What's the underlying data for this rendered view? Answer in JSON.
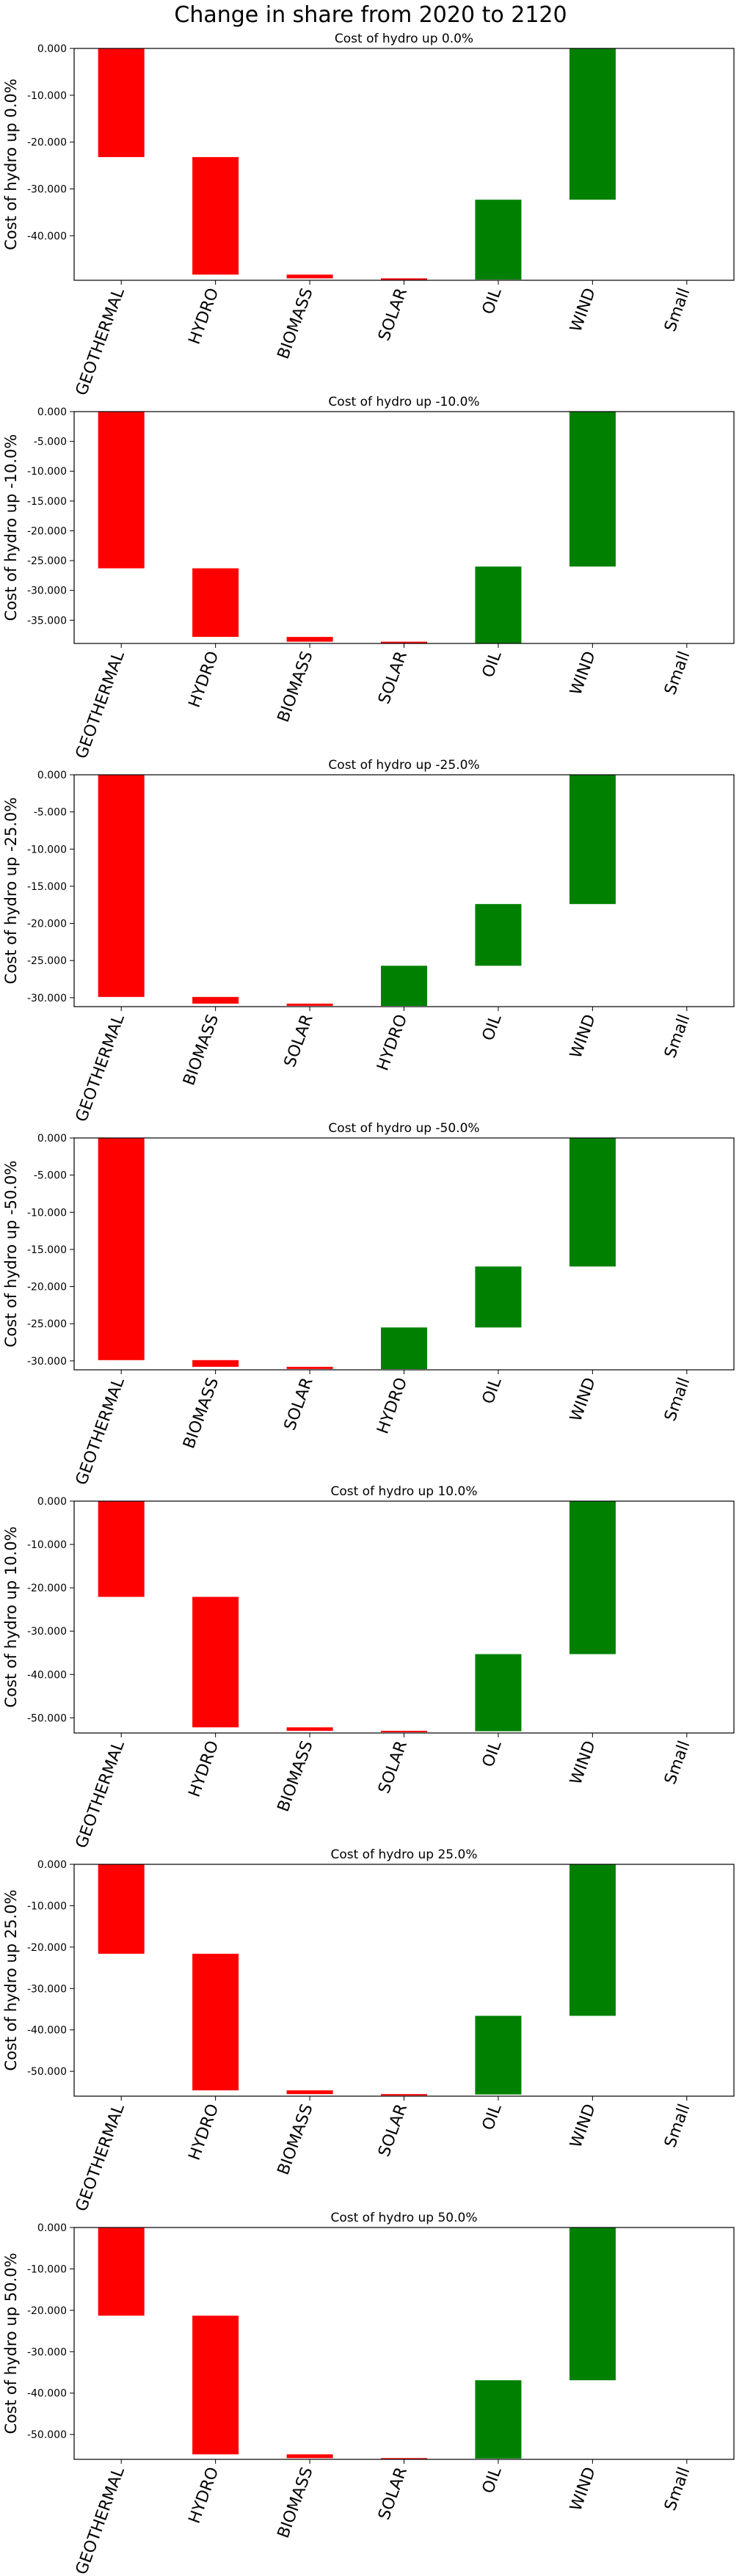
{
  "figure": {
    "suptitle": "Change in share from 2020 to 2120"
  },
  "colors": {
    "negative": "#ff0000",
    "positive": "#008000",
    "axis": "#000000",
    "background": "#ffffff"
  },
  "chart_data": [
    {
      "type": "bar",
      "subtype": "waterfall",
      "title": "Cost of hydro up 0.0%",
      "ylabel": "Cost of hydro up 0.0%",
      "categories": [
        "GEOTHERMAL",
        "HYDRO",
        "BIOMASS",
        "SOLAR",
        "OIL",
        "WIND",
        "Small"
      ],
      "bars": [
        {
          "category": "GEOTHERMAL",
          "top": 0,
          "bottom": -23200,
          "sign": "negative"
        },
        {
          "category": "HYDRO",
          "top": -23200,
          "bottom": -48300,
          "sign": "negative"
        },
        {
          "category": "BIOMASS",
          "top": -48300,
          "bottom": -49100,
          "sign": "negative"
        },
        {
          "category": "SOLAR",
          "top": -49100,
          "bottom": -49350,
          "sign": "negative"
        },
        {
          "category": "OIL",
          "top": -49350,
          "bottom": -32300,
          "sign": "positive"
        },
        {
          "category": "WIND",
          "top": -32300,
          "bottom": 0,
          "sign": "positive"
        },
        {
          "category": "Small",
          "top": 0,
          "bottom": 0,
          "sign": "positive"
        }
      ],
      "yticks": [
        "0.000",
        "-10.000",
        "-20.000",
        "-30.000",
        "-40.000"
      ],
      "ytick_values": [
        0,
        -10000,
        -20000,
        -30000,
        -40000
      ],
      "ylim": [
        -49500,
        0
      ]
    },
    {
      "type": "bar",
      "subtype": "waterfall",
      "title": "Cost of hydro up -10.0%",
      "ylabel": "Cost of hydro up -10.0%",
      "categories": [
        "GEOTHERMAL",
        "HYDRO",
        "BIOMASS",
        "SOLAR",
        "OIL",
        "WIND",
        "Small"
      ],
      "bars": [
        {
          "category": "GEOTHERMAL",
          "top": 0,
          "bottom": -26300,
          "sign": "negative"
        },
        {
          "category": "HYDRO",
          "top": -26300,
          "bottom": -37800,
          "sign": "negative"
        },
        {
          "category": "BIOMASS",
          "top": -37800,
          "bottom": -38600,
          "sign": "negative"
        },
        {
          "category": "SOLAR",
          "top": -38600,
          "bottom": -38900,
          "sign": "negative"
        },
        {
          "category": "OIL",
          "top": -38900,
          "bottom": -26000,
          "sign": "positive"
        },
        {
          "category": "WIND",
          "top": -26000,
          "bottom": 0,
          "sign": "positive"
        },
        {
          "category": "Small",
          "top": 0,
          "bottom": 0,
          "sign": "positive"
        }
      ],
      "yticks": [
        "0.000",
        "-5.000",
        "-10.000",
        "-15.000",
        "-20.000",
        "-25.000",
        "-30.000",
        "-35.000"
      ],
      "ytick_values": [
        0,
        -5000,
        -10000,
        -15000,
        -20000,
        -25000,
        -30000,
        -35000
      ],
      "ylim": [
        -38900,
        0
      ]
    },
    {
      "type": "bar",
      "subtype": "waterfall",
      "title": "Cost of hydro up -25.0%",
      "ylabel": "Cost of hydro up -25.0%",
      "categories": [
        "GEOTHERMAL",
        "BIOMASS",
        "SOLAR",
        "HYDRO",
        "OIL",
        "WIND",
        "Small"
      ],
      "bars": [
        {
          "category": "GEOTHERMAL",
          "top": 0,
          "bottom": -29900,
          "sign": "negative"
        },
        {
          "category": "BIOMASS",
          "top": -29900,
          "bottom": -30800,
          "sign": "negative"
        },
        {
          "category": "SOLAR",
          "top": -30800,
          "bottom": -31100,
          "sign": "negative"
        },
        {
          "category": "HYDRO",
          "top": -31100,
          "bottom": -25700,
          "sign": "positive"
        },
        {
          "category": "OIL",
          "top": -25700,
          "bottom": -17400,
          "sign": "positive"
        },
        {
          "category": "WIND",
          "top": -17400,
          "bottom": 0,
          "sign": "positive"
        },
        {
          "category": "Small",
          "top": 0,
          "bottom": 0,
          "sign": "positive"
        }
      ],
      "yticks": [
        "0.000",
        "-5.000",
        "-10.000",
        "-15.000",
        "-20.000",
        "-25.000",
        "-30.000"
      ],
      "ytick_values": [
        0,
        -5000,
        -10000,
        -15000,
        -20000,
        -25000,
        -30000
      ],
      "ylim": [
        -31200,
        0
      ]
    },
    {
      "type": "bar",
      "subtype": "waterfall",
      "title": "Cost of hydro up -50.0%",
      "ylabel": "Cost of hydro up -50.0%",
      "categories": [
        "GEOTHERMAL",
        "BIOMASS",
        "SOLAR",
        "HYDRO",
        "OIL",
        "WIND",
        "Small"
      ],
      "bars": [
        {
          "category": "GEOTHERMAL",
          "top": 0,
          "bottom": -29900,
          "sign": "negative"
        },
        {
          "category": "BIOMASS",
          "top": -29900,
          "bottom": -30800,
          "sign": "negative"
        },
        {
          "category": "SOLAR",
          "top": -30800,
          "bottom": -31100,
          "sign": "negative"
        },
        {
          "category": "HYDRO",
          "top": -31100,
          "bottom": -25500,
          "sign": "positive"
        },
        {
          "category": "OIL",
          "top": -25500,
          "bottom": -17300,
          "sign": "positive"
        },
        {
          "category": "WIND",
          "top": -17300,
          "bottom": 0,
          "sign": "positive"
        },
        {
          "category": "Small",
          "top": 0,
          "bottom": 0,
          "sign": "positive"
        }
      ],
      "yticks": [
        "0.000",
        "-5.000",
        "-10.000",
        "-15.000",
        "-20.000",
        "-25.000",
        "-30.000"
      ],
      "ytick_values": [
        0,
        -5000,
        -10000,
        -15000,
        -20000,
        -25000,
        -30000
      ],
      "ylim": [
        -31200,
        0
      ]
    },
    {
      "type": "bar",
      "subtype": "waterfall",
      "title": "Cost of hydro up 10.0%",
      "ylabel": "Cost of hydro up 10.0%",
      "categories": [
        "GEOTHERMAL",
        "HYDRO",
        "BIOMASS",
        "SOLAR",
        "OIL",
        "WIND",
        "Small"
      ],
      "bars": [
        {
          "category": "GEOTHERMAL",
          "top": 0,
          "bottom": -22100,
          "sign": "negative"
        },
        {
          "category": "HYDRO",
          "top": -22100,
          "bottom": -52200,
          "sign": "negative"
        },
        {
          "category": "BIOMASS",
          "top": -52200,
          "bottom": -53000,
          "sign": "negative"
        },
        {
          "category": "SOLAR",
          "top": -53000,
          "bottom": -53100,
          "sign": "negative"
        },
        {
          "category": "OIL",
          "top": -53100,
          "bottom": -35300,
          "sign": "positive"
        },
        {
          "category": "WIND",
          "top": -35300,
          "bottom": 0,
          "sign": "positive"
        },
        {
          "category": "Small",
          "top": 0,
          "bottom": 0,
          "sign": "positive"
        }
      ],
      "yticks": [
        "0.000",
        "-10.000",
        "-20.000",
        "-30.000",
        "-40.000",
        "-50.000"
      ],
      "ytick_values": [
        0,
        -10000,
        -20000,
        -30000,
        -40000,
        -50000
      ],
      "ylim": [
        -53500,
        0
      ]
    },
    {
      "type": "bar",
      "subtype": "waterfall",
      "title": "Cost of hydro up 25.0%",
      "ylabel": "Cost of hydro up 25.0%",
      "categories": [
        "GEOTHERMAL",
        "HYDRO",
        "BIOMASS",
        "SOLAR",
        "OIL",
        "WIND",
        "Small"
      ],
      "bars": [
        {
          "category": "GEOTHERMAL",
          "top": 0,
          "bottom": -21600,
          "sign": "negative"
        },
        {
          "category": "HYDRO",
          "top": -21600,
          "bottom": -54600,
          "sign": "negative"
        },
        {
          "category": "BIOMASS",
          "top": -54600,
          "bottom": -55500,
          "sign": "negative"
        },
        {
          "category": "SOLAR",
          "top": -55500,
          "bottom": -55600,
          "sign": "negative"
        },
        {
          "category": "OIL",
          "top": -55600,
          "bottom": -36600,
          "sign": "positive"
        },
        {
          "category": "WIND",
          "top": -36600,
          "bottom": 0,
          "sign": "positive"
        },
        {
          "category": "Small",
          "top": 0,
          "bottom": 0,
          "sign": "positive"
        }
      ],
      "yticks": [
        "0.000",
        "-10.000",
        "-20.000",
        "-30.000",
        "-40.000",
        "-50.000"
      ],
      "ytick_values": [
        0,
        -10000,
        -20000,
        -30000,
        -40000,
        -50000
      ],
      "ylim": [
        -56000,
        0
      ]
    },
    {
      "type": "bar",
      "subtype": "waterfall",
      "title": "Cost of hydro up 50.0%",
      "ylabel": "Cost of hydro up 50.0%",
      "categories": [
        "GEOTHERMAL",
        "HYDRO",
        "BIOMASS",
        "SOLAR",
        "OIL",
        "WIND",
        "Small"
      ],
      "bars": [
        {
          "category": "GEOTHERMAL",
          "top": 0,
          "bottom": -21300,
          "sign": "negative"
        },
        {
          "category": "HYDRO",
          "top": -21300,
          "bottom": -54800,
          "sign": "negative"
        },
        {
          "category": "BIOMASS",
          "top": -54800,
          "bottom": -55700,
          "sign": "negative"
        },
        {
          "category": "SOLAR",
          "top": -55700,
          "bottom": -55800,
          "sign": "negative"
        },
        {
          "category": "OIL",
          "top": -55800,
          "bottom": -36900,
          "sign": "positive"
        },
        {
          "category": "WIND",
          "top": -36900,
          "bottom": 0,
          "sign": "positive"
        },
        {
          "category": "Small",
          "top": 0,
          "bottom": 0,
          "sign": "positive"
        }
      ],
      "yticks": [
        "0.000",
        "-10.000",
        "-20.000",
        "-30.000",
        "-40.000",
        "-50.000"
      ],
      "ytick_values": [
        0,
        -10000,
        -20000,
        -30000,
        -40000,
        -50000
      ],
      "ylim": [
        -56000,
        0
      ]
    }
  ]
}
